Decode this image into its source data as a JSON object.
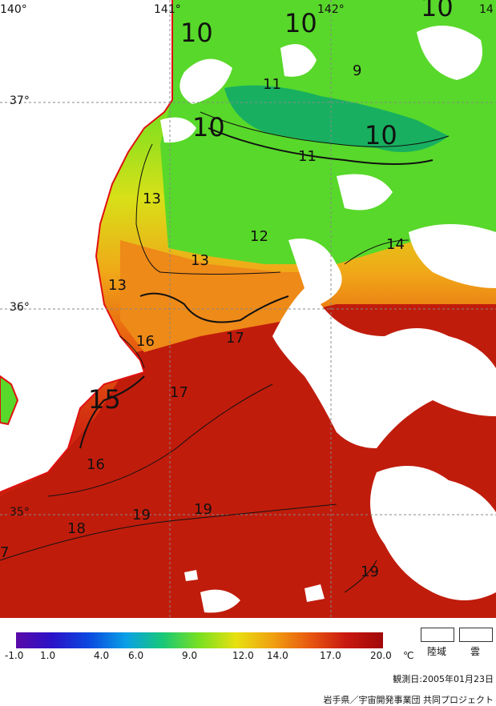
{
  "map": {
    "lon_labels": [
      "140°",
      "141°",
      "142°",
      "14"
    ],
    "lat_labels": [
      "37°",
      "36°",
      "35°"
    ],
    "contour_labels": [
      "10",
      "10",
      "10",
      "10",
      "10",
      "9",
      "11",
      "11",
      "13",
      "12",
      "13",
      "14",
      "13",
      "16",
      "17",
      "15",
      "17",
      "16",
      "19",
      "19",
      "18",
      "19",
      "7"
    ]
  },
  "legend": {
    "ticks": [
      "-1.0",
      "1.0",
      "4.0",
      "6.0",
      "9.0",
      "12.0",
      "14.0",
      "17.0",
      "20.0"
    ],
    "unit": "℃",
    "land_label": "陸域",
    "cloud_label": "雲",
    "colors": [
      "#5a0aa8",
      "#2a12c8",
      "#0a4ae0",
      "#0aa0e6",
      "#18c878",
      "#7ae020",
      "#e8e010",
      "#f0a010",
      "#e85810",
      "#c81810",
      "#a00808"
    ]
  },
  "footer": {
    "observation_date": "観測日:2005年01月23日",
    "credit": "岩手県／宇宙開発事業団 共同プロジェクト"
  }
}
